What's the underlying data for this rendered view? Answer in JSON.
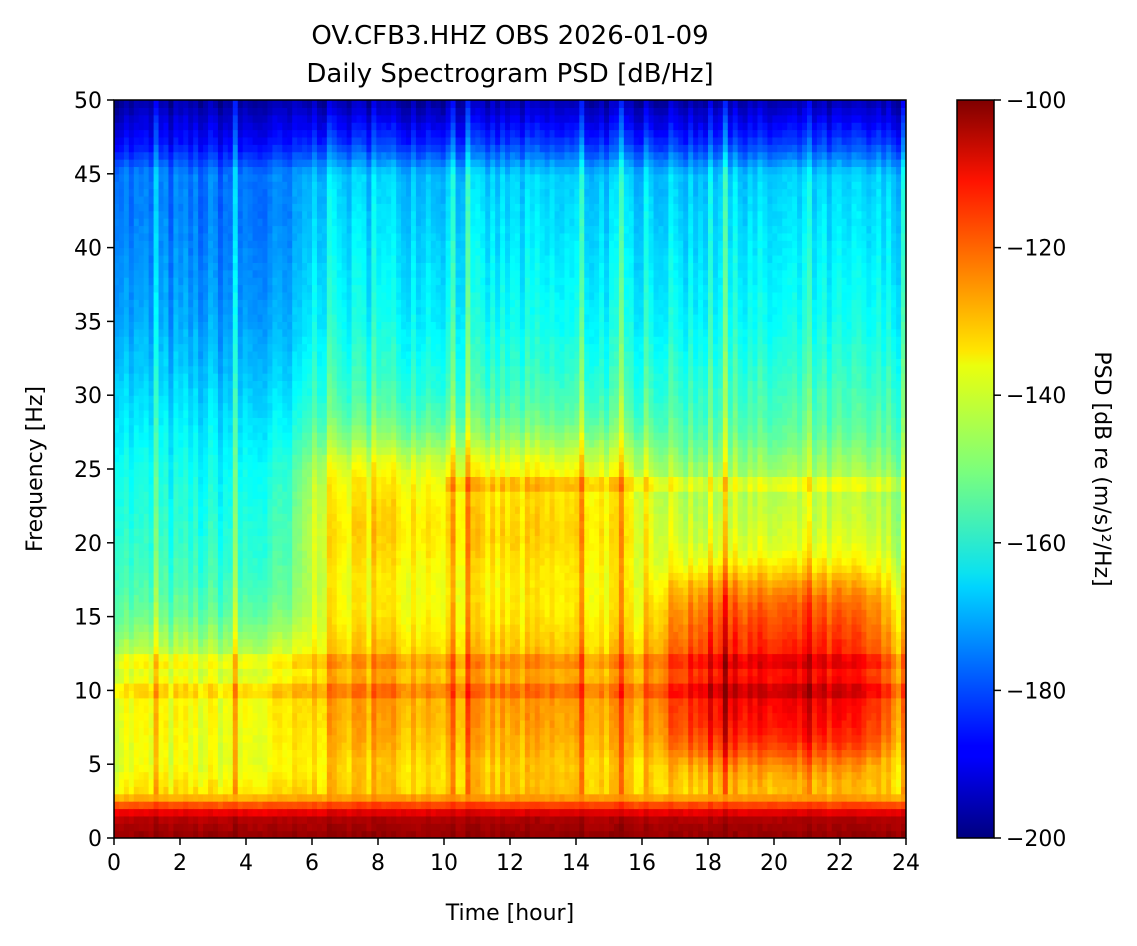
{
  "chart_data": {
    "type": "heatmap",
    "title": "OV.CFB3.HHZ OBS 2026-01-09",
    "subtitle": "Daily Spectrogram PSD [dB/Hz]",
    "xlabel": "Time [hour]",
    "ylabel": "Frequency [Hz]",
    "colorbar_label": "PSD [dB re (m/s)²/Hz]",
    "colormap": "jet",
    "xlim": [
      0,
      24
    ],
    "ylim": [
      0,
      50
    ],
    "clim": [
      -200,
      -100
    ],
    "x_ticks": [
      0,
      2,
      4,
      6,
      8,
      10,
      12,
      14,
      16,
      18,
      20,
      22,
      24
    ],
    "y_ticks": [
      0,
      5,
      10,
      15,
      20,
      25,
      30,
      35,
      40,
      45,
      50
    ],
    "colorbar_ticks": [
      -100,
      -120,
      -140,
      -160,
      -180,
      -200
    ],
    "colorbar_tick_labels": [
      "−100",
      "−120",
      "−140",
      "−160",
      "−180",
      "−200"
    ],
    "freq_profile_db": [
      {
        "freq": 0,
        "db": -102
      },
      {
        "freq": 1.5,
        "db": -106
      },
      {
        "freq": 3,
        "db": -135
      },
      {
        "freq": 5,
        "db": -140
      },
      {
        "freq": 10,
        "db": -138
      },
      {
        "freq": 15,
        "db": -146
      },
      {
        "freq": 25,
        "db": -152
      },
      {
        "freq": 35,
        "db": -162
      },
      {
        "freq": 45,
        "db": -168
      },
      {
        "freq": 47,
        "db": -182
      },
      {
        "freq": 50,
        "db": -196
      }
    ],
    "regions": [
      {
        "name": "low-frequency band",
        "hours": [
          0,
          24
        ],
        "freq_range": [
          0,
          3
        ],
        "db": -102
      },
      {
        "name": "night quiet period",
        "hours": [
          0,
          5.7
        ],
        "freq_range": [
          15,
          46
        ],
        "db": -165
      },
      {
        "name": "evening elevated noise",
        "hours": [
          16.5,
          23.5
        ],
        "freq_range": [
          5,
          18
        ],
        "db": -113
      },
      {
        "name": "high-frequency rolloff",
        "hours": [
          0,
          24
        ],
        "freq_range": [
          47,
          50
        ],
        "db": -195
      }
    ]
  }
}
